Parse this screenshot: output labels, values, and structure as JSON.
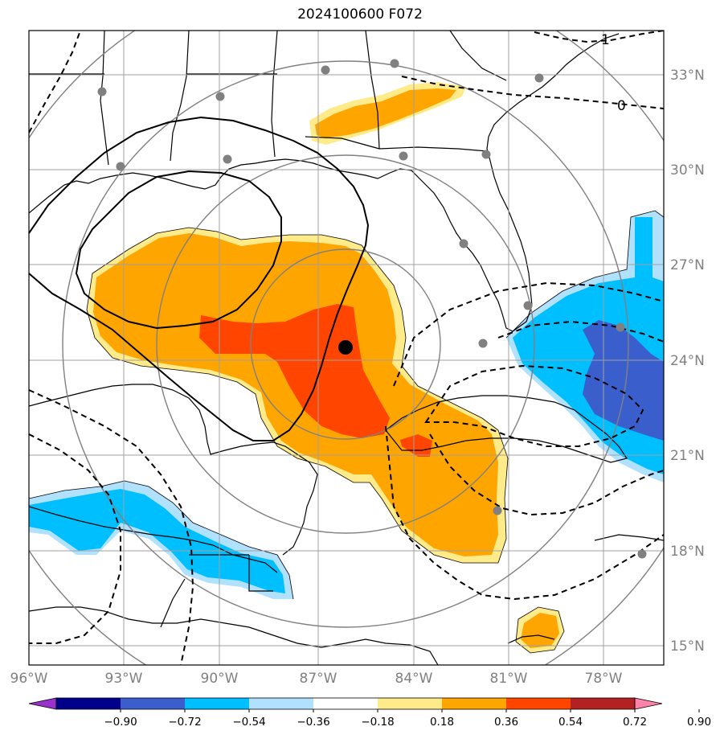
{
  "title": "2024100600 F072",
  "map": {
    "lon_ticks": [
      "96°W",
      "93°W",
      "90°W",
      "87°W",
      "84°W",
      "81°W",
      "78°W"
    ],
    "lat_ticks": [
      "33°N",
      "30°N",
      "27°N",
      "24°N",
      "21°N",
      "18°N",
      "15°N"
    ],
    "contour_labels": [
      "1",
      "0"
    ],
    "storm_center": {
      "lon": -86.0,
      "lat": 24.4
    },
    "range_rings_degrees": [
      3,
      6,
      9,
      12
    ],
    "grid_color": "#a0a0a0"
  },
  "colorbar": {
    "ticks": [
      "−0.90",
      "−0.72",
      "−0.54",
      "−0.36",
      "−0.18",
      "0.18",
      "0.36",
      "0.54",
      "0.72",
      "0.90"
    ],
    "colors": [
      "#9932cc",
      "#00008b",
      "#3a5fcd",
      "#00bfff",
      "#b0e2ff",
      "#ffffff",
      "#ffeb8a",
      "#ffa500",
      "#ff4500",
      "#b22222",
      "#ff82ab"
    ],
    "extend": "both"
  }
}
